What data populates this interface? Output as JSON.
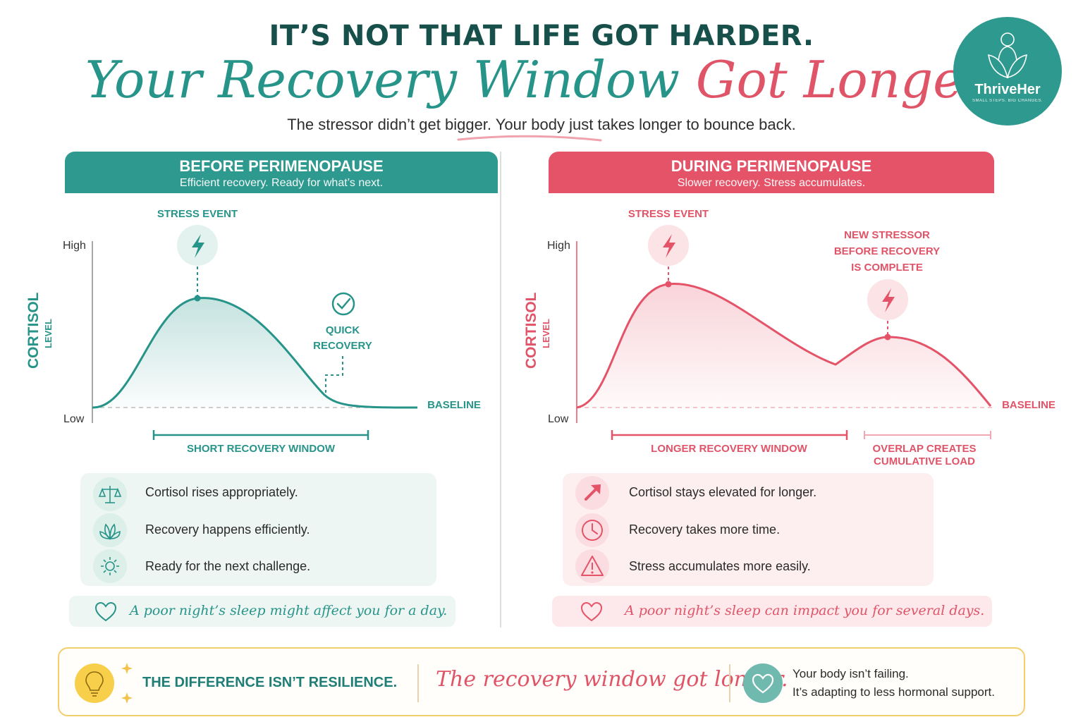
{
  "header": {
    "kicker": "IT’S NOT THAT LIFE GOT HARDER.",
    "title_part1": "Your Recovery Window ",
    "title_part2": "Got Longer.",
    "subtitle": "The stressor didn’t get bigger. Your body just takes longer to bounce back."
  },
  "brand": {
    "name": "ThriveHer",
    "tagline": "SMALL STEPS. BIG CHANGES."
  },
  "colors": {
    "teal": "#2e998e",
    "pink": "#e55368",
    "gold": "#f2cf6a"
  },
  "left": {
    "heading": "BEFORE PERIMENOPAUSE",
    "subheading": "Efficient recovery. Ready for what’s next.",
    "stress_label": "STRESS EVENT",
    "y_high": "High",
    "y_low": "Low",
    "y_axis_main": "CORTISOL",
    "y_axis_sub": "LEVEL",
    "baseline_label": "BASELINE",
    "recovery_label_1": "QUICK",
    "recovery_label_2": "RECOVERY",
    "window_label": "SHORT RECOVERY WINDOW",
    "items": [
      {
        "icon": "balance-scale-icon",
        "text": "Cortisol rises appropriately."
      },
      {
        "icon": "leaf-lotus-icon",
        "text": "Recovery happens efficiently."
      },
      {
        "icon": "sun-icon",
        "text": "Ready for the next challenge."
      }
    ],
    "note": "A poor night’s sleep might affect you for a day."
  },
  "right": {
    "heading": "DURING PERIMENOPAUSE",
    "subheading": "Slower recovery. Stress accumulates.",
    "stress_label": "STRESS EVENT",
    "new_stress_1": "NEW STRESSOR",
    "new_stress_2": "BEFORE RECOVERY",
    "new_stress_3": "IS COMPLETE",
    "y_high": "High",
    "y_low": "Low",
    "y_axis_main": "CORTISOL",
    "y_axis_sub": "LEVEL",
    "baseline_label": "BASELINE",
    "window_label": "LONGER RECOVERY WINDOW",
    "overlap_label_1": "OVERLAP CREATES",
    "overlap_label_2": "CUMULATIVE LOAD",
    "items": [
      {
        "icon": "arrow-up-right-icon",
        "text": "Cortisol stays elevated for longer."
      },
      {
        "icon": "clock-icon",
        "text": "Recovery takes more time."
      },
      {
        "icon": "warning-icon",
        "text": "Stress accumulates more easily."
      }
    ],
    "note": "A poor night’s sleep can impact you for several days."
  },
  "footer": {
    "main": "THE DIFFERENCE ISN’T RESILIENCE.",
    "script": "The recovery window got longer.",
    "line1": "Your body isn’t failing.",
    "line2": "It’s adapting to less hormonal support."
  }
}
